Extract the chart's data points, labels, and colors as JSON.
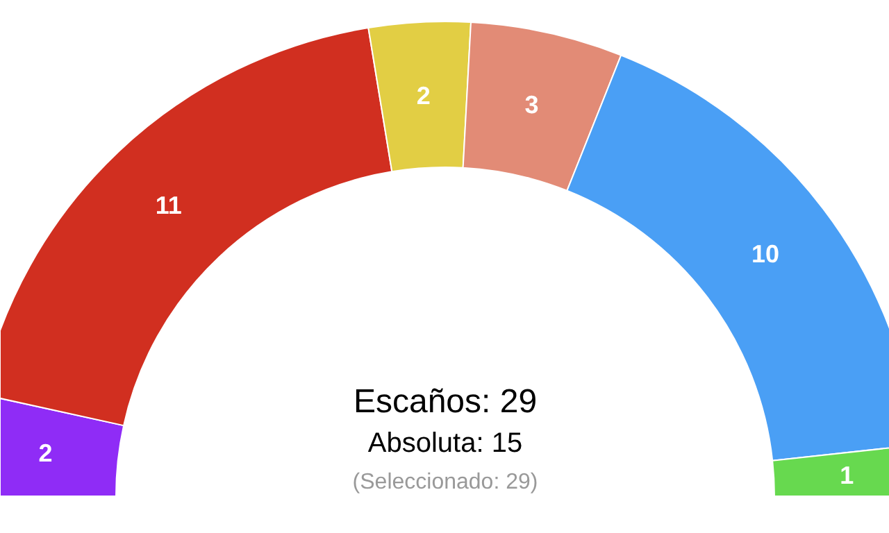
{
  "chart_data": {
    "type": "donut",
    "categories": [
      null,
      null,
      null,
      null,
      null,
      null
    ],
    "values": [
      2,
      11,
      2,
      3,
      10,
      1
    ],
    "colors": [
      "#8f2cf6",
      "#d12f20",
      "#e2ce44",
      "#e28b76",
      "#4a9ff5",
      "#67d94f"
    ],
    "data_labels": true,
    "annotations": [
      "Escaños: 29",
      "Absoluta: 15",
      "(Seleccionado: 29)"
    ]
  }
}
